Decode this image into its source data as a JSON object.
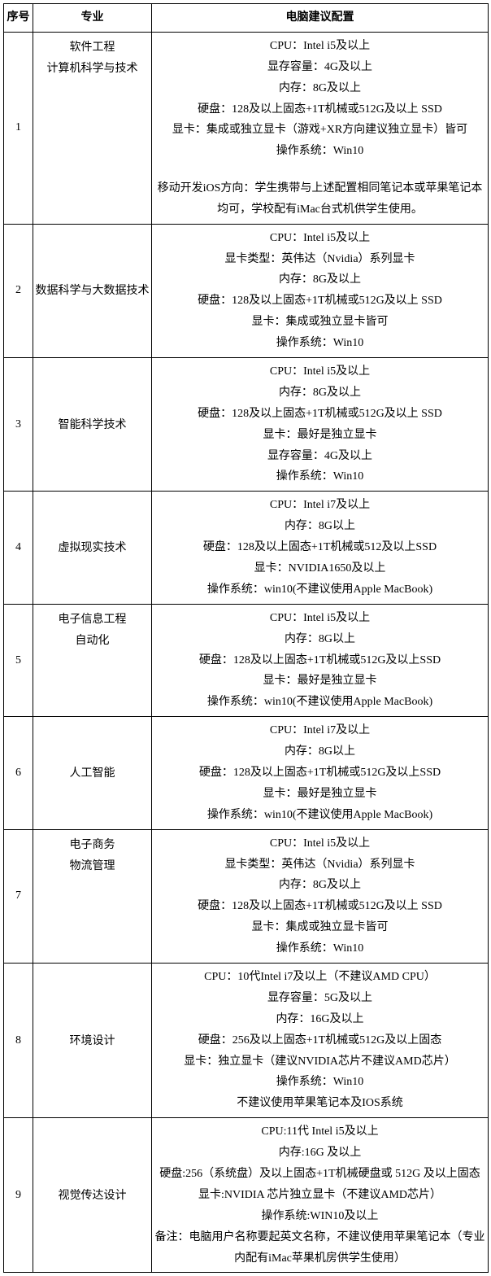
{
  "columns": [
    "序号",
    "专业",
    "电脑建议配置"
  ],
  "rows": [
    {
      "id": "1",
      "major_lines": [
        "软件工程",
        "计算机科学与技术"
      ],
      "major_align": "top",
      "spec_lines": [
        "CPU：Intel i5及以上",
        "显存容量：4G及以上",
        "内存：8G及以上",
        "硬盘：128及以上固态+1T机械或512G及以上 SSD",
        "显卡：集成或独立显卡（游戏+XR方向建议独立显卡）皆可",
        "操作系统：Win10",
        "",
        "移动开发iOS方向：学生携带与上述配置相同笔记本或苹果笔记本均可，学校配有iMac台式机供学生使用。"
      ]
    },
    {
      "id": "2",
      "major_lines": [
        "数据科学与大数据技术"
      ],
      "major_align": "mid",
      "spec_lines": [
        "CPU：Intel i5及以上",
        "显卡类型：英伟达（Nvidia）系列显卡",
        "内存：8G及以上",
        "硬盘：128及以上固态+1T机械或512G及以上 SSD",
        "显卡：集成或独立显卡皆可",
        "操作系统：Win10"
      ]
    },
    {
      "id": "3",
      "major_lines": [
        "智能科学技术"
      ],
      "major_align": "mid",
      "spec_lines": [
        "CPU：Intel i5及以上",
        "内存：8G及以上",
        "硬盘：128及以上固态+1T机械或512G及以上 SSD",
        "显卡：最好是独立显卡",
        "显存容量：4G及以上",
        "操作系统：Win10"
      ]
    },
    {
      "id": "4",
      "major_lines": [
        "虚拟现实技术"
      ],
      "major_align": "mid",
      "spec_lines": [
        "CPU：Intel i7及以上",
        "内存：8G以上",
        "硬盘：128及以上固态+1T机械或512及以上SSD",
        "显卡：NVIDIA1650及以上",
        "操作系统：win10(不建议使用Apple MacBook)"
      ]
    },
    {
      "id": "5",
      "major_lines": [
        "电子信息工程",
        "自动化"
      ],
      "major_align": "top",
      "spec_lines": [
        "CPU：Intel i5及以上",
        "内存：8G以上",
        "硬盘：128及以上固态+1T机械或512G及以上SSD",
        "显卡：最好是独立显卡",
        "操作系统：win10(不建议使用Apple MacBook)"
      ]
    },
    {
      "id": "6",
      "major_lines": [
        "人工智能"
      ],
      "major_align": "mid",
      "spec_lines": [
        "CPU：Intel i7及以上",
        "内存：8G以上",
        "硬盘：128及以上固态+1T机械或512G及以上SSD",
        "显卡：最好是独立显卡",
        "操作系统：win10(不建议使用Apple MacBook)"
      ]
    },
    {
      "id": "7",
      "major_lines": [
        "电子商务",
        "物流管理"
      ],
      "major_align": "top",
      "spec_lines": [
        "CPU：Intel i5及以上",
        "显卡类型：英伟达（Nvidia）系列显卡",
        "内存：8G及以上",
        "硬盘：128及以上固态+1T机械或512G及以上 SSD",
        "显卡：集成或独立显卡皆可",
        "操作系统：Win10"
      ]
    },
    {
      "id": "8",
      "major_lines": [
        "环境设计"
      ],
      "major_align": "mid",
      "spec_lines": [
        "CPU：10代Intel i7及以上（不建议AMD CPU）",
        "显存容量：5G及以上",
        "内存：16G及以上",
        "硬盘：256及以上固态+1T机械或512G及以上固态",
        "显卡：独立显卡（建议NVIDIA芯片不建议AMD芯片）",
        "操作系统：Win10",
        "不建议使用苹果笔记本及IOS系统"
      ]
    },
    {
      "id": "9",
      "major_lines": [
        "视觉传达设计"
      ],
      "major_align": "mid",
      "spec_lines": [
        "CPU:11代 Intel i5及以上",
        "内存:16G 及以上",
        "硬盘:256（系统盘）及以上固态+1T机械硬盘或 512G 及以上固态",
        "显卡:NVIDIA 芯片独立显卡（不建议AMD芯片）",
        "操作系统:WIN10及以上",
        "备注：电脑用户名称要起英文名称，不建议使用苹果笔记本（专业内配有iMac苹果机房供学生使用）"
      ]
    }
  ]
}
